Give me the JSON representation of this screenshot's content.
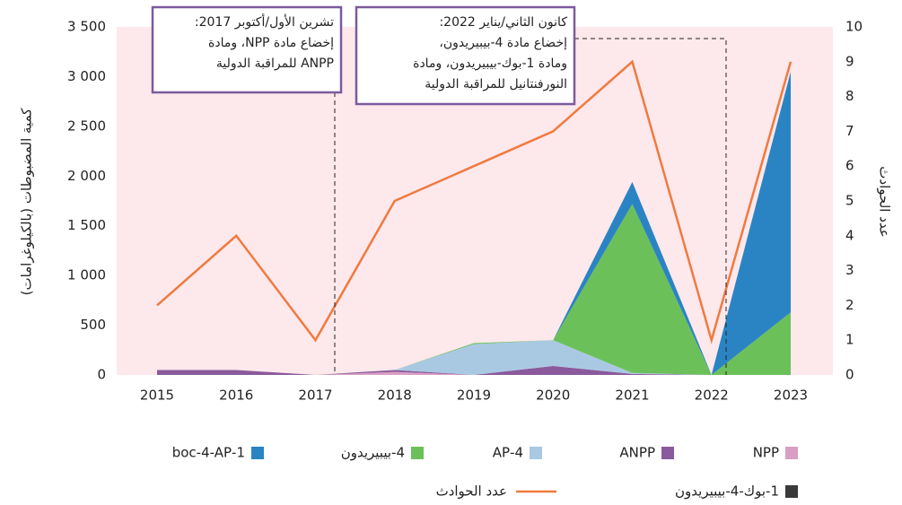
{
  "chart_data": {
    "type": "stacked-area-line",
    "y_label": "كمية المضبوطات (بالكيلوغرامات)",
    "y2_label": "عدد الحوادث",
    "categories": [
      "2015",
      "2016",
      "2017",
      "2018",
      "2019",
      "2020",
      "2021",
      "2022",
      "2023"
    ],
    "ylim": [
      0,
      3500
    ],
    "yticks": [
      0,
      500,
      {
        "value": 1000,
        "label": "1 000"
      },
      {
        "value": 1500,
        "label": "1 500"
      },
      {
        "value": 2000,
        "label": "2 000"
      },
      {
        "value": 2500,
        "label": "2 500"
      },
      {
        "value": 3000,
        "label": "3 000"
      },
      {
        "value": 3500,
        "label": "3 500"
      }
    ],
    "y2lim": [
      0,
      10
    ],
    "y2ticks": [
      0,
      1,
      2,
      3,
      4,
      5,
      6,
      7,
      8,
      9,
      10
    ],
    "series": [
      {
        "name": "NPP",
        "color": "#d99ec3",
        "values": [
          0,
          0,
          0,
          30,
          0,
          0,
          0,
          0,
          0
        ]
      },
      {
        "name": "ANPP",
        "color": "#8a5a9c",
        "values": [
          50,
          50,
          0,
          20,
          0,
          90,
          10,
          0,
          0
        ]
      },
      {
        "name": "4-AP",
        "color": "#a9c9e3",
        "values": [
          0,
          0,
          0,
          0,
          310,
          260,
          10,
          0,
          0
        ]
      },
      {
        "name": "4-بيبيريدون",
        "color": "#6cc05a",
        "values": [
          0,
          0,
          0,
          0,
          10,
          0,
          1700,
          0,
          630
        ]
      },
      {
        "name": "1-boc-4-AP",
        "color": "#2a84c4",
        "values": [
          0,
          0,
          0,
          0,
          0,
          0,
          220,
          0,
          2420
        ]
      },
      {
        "name": "1-بوك-4-بيبيريدون",
        "color": "#3a3a3a",
        "values": [
          0,
          0,
          0,
          0,
          0,
          0,
          0,
          0,
          0
        ]
      },
      {
        "name": "عدد الحوادث",
        "color": "#f07a3e",
        "axis": "y2",
        "values": [
          2,
          4,
          1,
          5,
          6,
          7,
          9,
          1,
          9
        ]
      }
    ],
    "annotations": [
      {
        "lines": [
          "تشرين الأول/أكتوبر 2017:",
          "إخضاع مادة NPP، ومادة",
          "ANPP للمراقبة الدولية"
        ]
      },
      {
        "lines": [
          "كانون الثاني/يناير 2022:",
          "إخضاع مادة 4-بيبيريدون،",
          "ومادة 1-بوك-بيبيريدون، ومادة",
          "النورفنتانيل للمراقبة الدولية"
        ]
      }
    ]
  }
}
